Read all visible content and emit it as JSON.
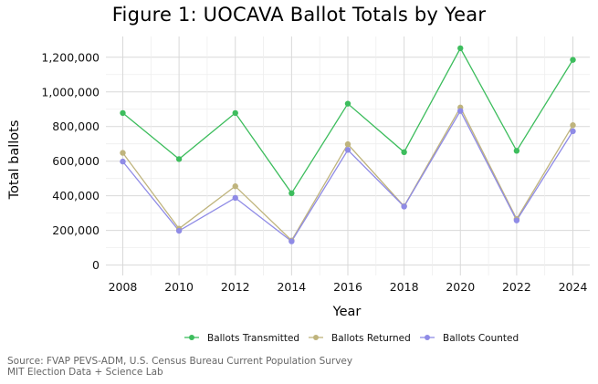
{
  "chart_data": {
    "type": "line",
    "title": "Figure 1: UOCAVA Ballot Totals by Year",
    "xlabel": "Year",
    "ylabel": "Total ballots",
    "x": [
      2008,
      2010,
      2012,
      2014,
      2016,
      2018,
      2020,
      2022,
      2024
    ],
    "ylim": [
      -60000,
      1320000
    ],
    "yticks": [
      0,
      200000,
      400000,
      600000,
      800000,
      1000000,
      1200000
    ],
    "ytick_labels": [
      "0",
      "200,000",
      "400,000",
      "600,000",
      "800,000",
      "1,000,000",
      "1,200,000"
    ],
    "grid": true,
    "legend_position": "bottom",
    "series": [
      {
        "name": "Ballots Transmitted",
        "color": "#3dbd5d",
        "values": [
          878000,
          612000,
          878000,
          415000,
          932000,
          652000,
          1252000,
          660000,
          1185000
        ]
      },
      {
        "name": "Ballots Returned",
        "color": "#bfb47d",
        "values": [
          648000,
          210000,
          455000,
          142000,
          698000,
          340000,
          910000,
          266000,
          808000
        ]
      },
      {
        "name": "Ballots Counted",
        "color": "#8f8be6",
        "values": [
          598000,
          198000,
          388000,
          137000,
          665000,
          338000,
          890000,
          258000,
          773000
        ]
      }
    ]
  },
  "source_lines": [
    "Source: FVAP PEVS-ADM, U.S. Census Bureau Current Population Survey",
    "MIT Election Data + Science Lab"
  ]
}
